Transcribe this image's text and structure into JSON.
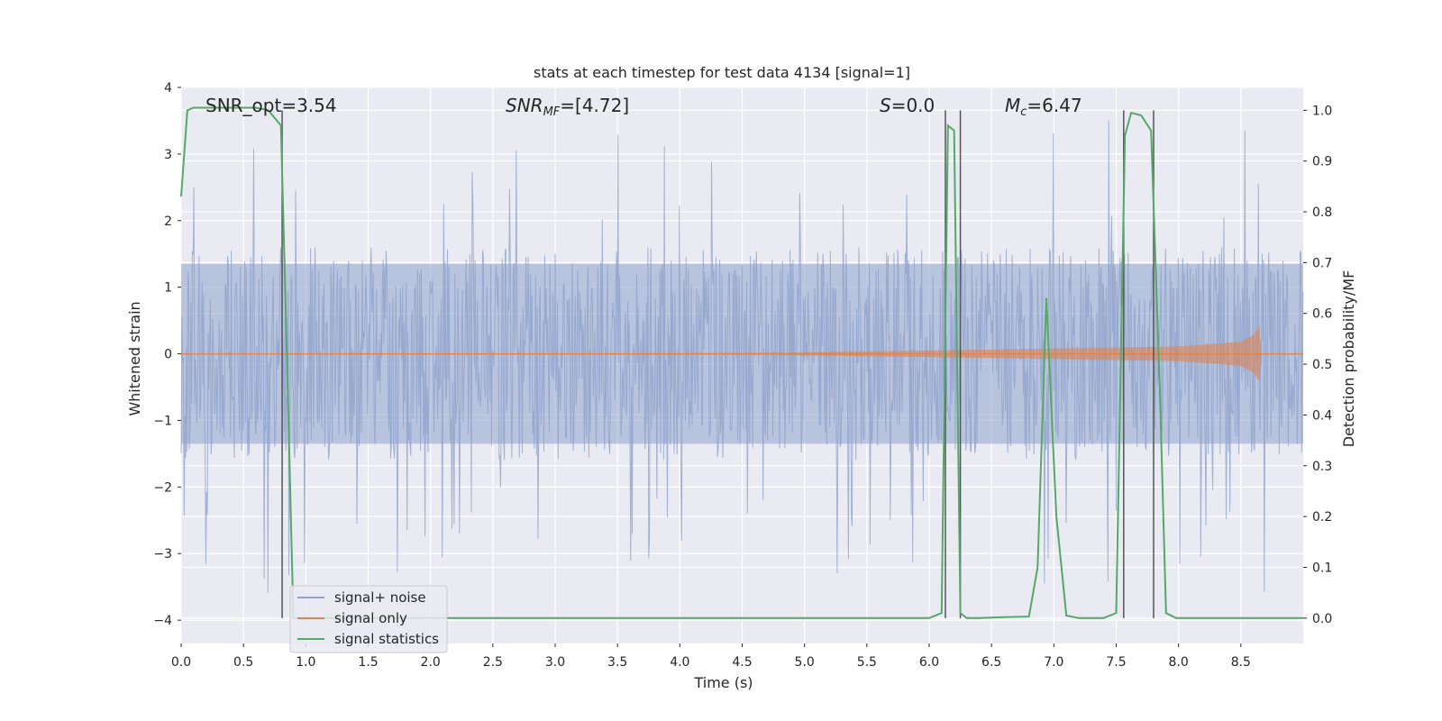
{
  "chart_data": {
    "type": "line",
    "title": "stats at each timestep for test data 4134 [signal=1]",
    "xlabel": "Time (s)",
    "ylabel_left": "Whitened strain",
    "ylabel_right": "Detection probability/MF",
    "xlim": [
      0.0,
      9.0
    ],
    "ylim_left": [
      -4.35,
      4.0
    ],
    "ylim_right": [
      -0.05,
      1.045
    ],
    "xticks": [
      0.0,
      0.5,
      1.0,
      1.5,
      2.0,
      2.5,
      3.0,
      3.5,
      4.0,
      4.5,
      5.0,
      5.5,
      6.0,
      6.5,
      7.0,
      7.5,
      8.0,
      8.5
    ],
    "xtick_labels": [
      "0.0",
      "0.5",
      "1.0",
      "1.5",
      "2.0",
      "2.5",
      "3.0",
      "3.5",
      "4.0",
      "4.5",
      "5.0",
      "5.5",
      "6.0",
      "6.5",
      "7.0",
      "7.5",
      "8.0",
      "8.5"
    ],
    "yticks_left": [
      4,
      3,
      2,
      1,
      0,
      -1,
      -2,
      -3,
      -4
    ],
    "ytick_labels_left": [
      "4",
      "3",
      "2",
      "1",
      "0",
      "−1",
      "−2",
      "−3",
      "−4"
    ],
    "yticks_right": [
      1.0,
      0.9,
      0.8,
      0.7,
      0.6,
      0.5,
      0.4,
      0.3,
      0.2,
      0.1,
      0.0
    ],
    "ytick_labels_right": [
      "1.0",
      "0.9",
      "0.8",
      "0.7",
      "0.6",
      "0.5",
      "0.4",
      "0.3",
      "0.2",
      "0.1",
      "0.0"
    ],
    "grid": true,
    "legend_position": "lower-left",
    "annotations": {
      "snr_opt": "SNR_opt=3.54",
      "snr_mf_main": "SNR",
      "snr_mf_sub": "MF",
      "snr_mf_value": "=[4.72]",
      "s_main": "S",
      "s_value": "=0.0",
      "mc_main": "M",
      "mc_sub": "c",
      "mc_value": "=6.47"
    },
    "series": [
      {
        "name": "signal+ noise",
        "color": "#8ea2cc",
        "noise_band": 1.0,
        "noise_peak": 3.6
      },
      {
        "name": "signal only",
        "color": "#dd8452",
        "x": [
          0,
          4.5,
          6.0,
          7.0,
          8.0,
          8.5,
          8.6,
          8.65,
          8.66
        ],
        "amplitude": [
          0.0,
          0.01,
          0.05,
          0.08,
          0.11,
          0.18,
          0.28,
          0.42,
          0.0
        ]
      },
      {
        "name": "signal statistics",
        "color": "#55a868",
        "x": [
          0.0,
          0.05,
          0.1,
          0.2,
          0.3,
          0.4,
          0.5,
          0.6,
          0.7,
          0.8,
          0.85,
          0.9,
          1.0,
          1.5,
          2.0,
          3.0,
          4.0,
          5.0,
          6.0,
          6.1,
          6.15,
          6.2,
          6.25,
          6.3,
          6.4,
          6.6,
          6.8,
          6.87,
          6.94,
          7.02,
          7.1,
          7.2,
          7.4,
          7.5,
          7.57,
          7.62,
          7.7,
          7.78,
          7.85,
          7.9,
          7.98,
          8.5,
          9.0
        ],
        "y": [
          0.83,
          1.0,
          1.005,
          1.005,
          1.005,
          1.005,
          1.005,
          1.005,
          1.0,
          0.97,
          0.5,
          0.0,
          0.0,
          0.0,
          0.0,
          0.0,
          0.0,
          0.0,
          0.0,
          0.01,
          0.97,
          0.96,
          0.01,
          0.0,
          0.0,
          0.002,
          0.003,
          0.1,
          0.63,
          0.2,
          0.005,
          0.0,
          0.0,
          0.01,
          0.95,
          0.995,
          0.99,
          0.96,
          0.45,
          0.01,
          0.0,
          0.0,
          0.0
        ]
      }
    ],
    "vertical_markers_x": [
      0.81,
      6.13,
      6.25,
      7.56,
      7.8
    ]
  }
}
